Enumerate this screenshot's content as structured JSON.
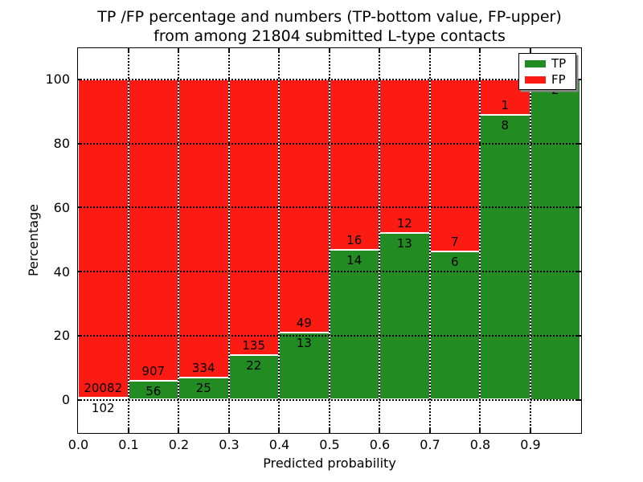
{
  "figure": {
    "title_line1": "TP /FP percentage and numbers (TP-bottom value, FP-upper)",
    "title_line2": "from among 21804 submitted L-type contacts",
    "background": "#ffffff"
  },
  "axes": {
    "xlabel": "Predicted probability",
    "ylabel": "Percentage",
    "ytick_labels": [
      "0",
      "20",
      "40",
      "60",
      "80",
      "100"
    ],
    "xtick_labels": [
      "0.0",
      "0.1",
      "0.2",
      "0.3",
      "0.4",
      "0.5",
      "0.6",
      "0.7",
      "0.8",
      "0.9"
    ]
  },
  "legend": {
    "items": [
      {
        "label": "TP",
        "color": "#228b22"
      },
      {
        "label": "FP",
        "color": "#fb1b12"
      }
    ]
  },
  "chart_data": {
    "type": "bar",
    "stacked": true,
    "normalized": "each 0.1 probability bin scaled to 100%",
    "title": "TP /FP percentage and numbers (TP-bottom value, FP-upper) from among 21804 submitted L-type contacts",
    "xlabel": "Predicted probability",
    "ylabel": "Percentage",
    "categories": [
      "0.0-0.1",
      "0.1-0.2",
      "0.2-0.3",
      "0.3-0.4",
      "0.4-0.5",
      "0.5-0.6",
      "0.6-0.7",
      "0.7-0.8",
      "0.8-0.9",
      "0.9-1.0"
    ],
    "series": [
      {
        "name": "TP",
        "color": "#228b22",
        "counts": [
          102,
          56,
          25,
          22,
          13,
          14,
          13,
          6,
          8,
          2
        ]
      },
      {
        "name": "FP",
        "color": "#fb1b12",
        "counts": [
          20082,
          907,
          334,
          135,
          49,
          16,
          12,
          7,
          1,
          0
        ]
      }
    ],
    "tp_percent_per_bin": [
      0.51,
      5.82,
      6.96,
      14.01,
      20.97,
      46.67,
      52.0,
      46.15,
      88.89,
      100.0
    ],
    "total_submitted": 21804,
    "xlim": [
      0.0,
      1.0
    ],
    "ylim": [
      -10,
      110
    ],
    "xticks": [
      0.0,
      0.1,
      0.2,
      0.3,
      0.4,
      0.5,
      0.6,
      0.7,
      0.8,
      0.9
    ],
    "yticks": [
      0,
      20,
      40,
      60,
      80,
      100
    ],
    "grid": "dotted black, both axes, drawn above bars",
    "bar_edge_color": "#ffffff",
    "legend_position": "upper right",
    "annotation_rule": "FP count above TP/FP boundary, TP count below boundary"
  }
}
